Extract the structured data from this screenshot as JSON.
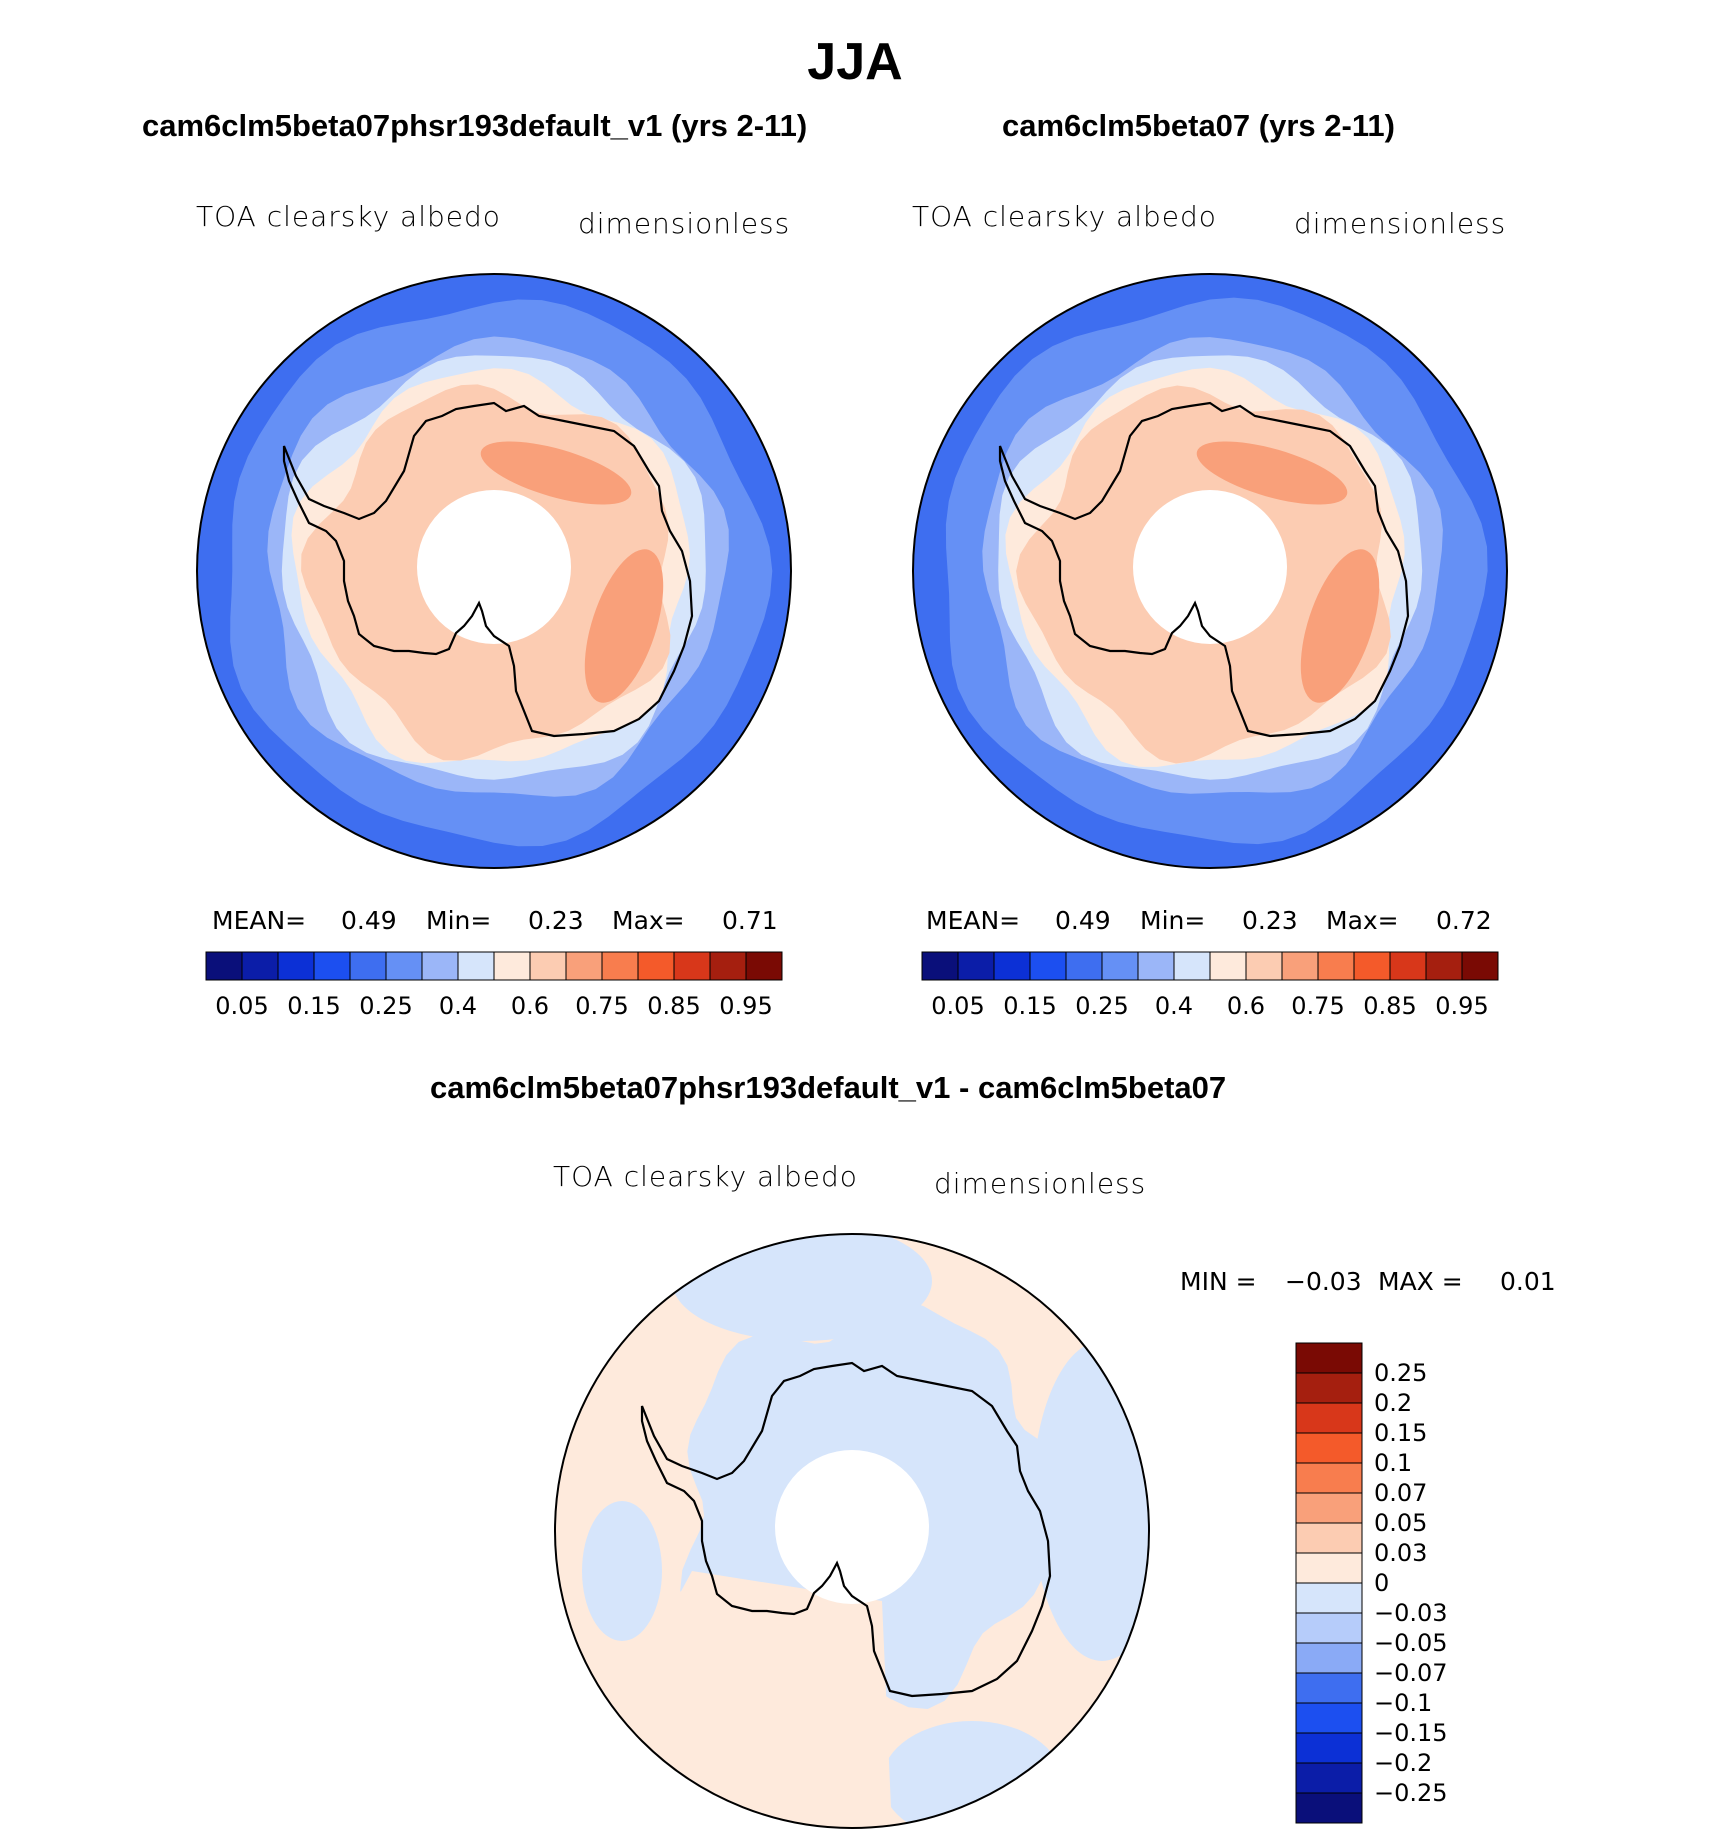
{
  "figure": {
    "title": "JJA",
    "panels": [
      {
        "case_title": "cam6clm5beta07phsr193default_v1 (yrs 2-11)",
        "variable": "TOA clearsky albedo",
        "units": "dimensionless",
        "stats": {
          "mean_label": "MEAN=",
          "mean": "0.49",
          "min_label": "Min=",
          "min": "0.23",
          "max_label": "Max=",
          "max": "0.71"
        }
      },
      {
        "case_title": "cam6clm5beta07 (yrs 2-11)",
        "variable": "TOA clearsky albedo",
        "units": "dimensionless",
        "stats": {
          "mean_label": "MEAN=",
          "mean": "0.49",
          "min_label": "Min=",
          "min": "0.23",
          "max_label": "Max=",
          "max": "0.72"
        }
      }
    ],
    "diff_panel": {
      "title": "cam6clm5beta07phsr193default_v1 - cam6clm5beta07",
      "variable": "TOA clearsky albedo",
      "units": "dimensionless",
      "min_label": "MIN =",
      "min": "−0.03",
      "max_label": "MAX =",
      "max": "0.01"
    }
  },
  "chart_data": [
    {
      "type": "heatmap",
      "projection": "south polar stereographic",
      "title": "cam6clm5beta07phsr193default_v1 (yrs 2-11)",
      "variable": "TOA clearsky albedo",
      "units": "dimensionless",
      "mean": 0.49,
      "min": 0.23,
      "max": 0.71,
      "colorbar_orientation": "horizontal",
      "colorbar_levels": [
        0.05,
        0.1,
        0.15,
        0.2,
        0.25,
        0.3,
        0.4,
        0.5,
        0.6,
        0.7,
        0.75,
        0.8,
        0.85,
        0.9,
        0.95
      ],
      "colorbar_tick_labels": [
        "0.05",
        "0.15",
        "0.25",
        "0.4",
        "0.6",
        "0.75",
        "0.85",
        "0.95"
      ],
      "colorbar_colors": [
        "#0a0f7a",
        "#0b1da8",
        "#0c30d6",
        "#1c4ff0",
        "#3e6ef0",
        "#6590f5",
        "#9bb6f8",
        "#d6e5fb",
        "#feeadc",
        "#fcccb2",
        "#f9a07a",
        "#f87d4e",
        "#f45a2a",
        "#d8371a",
        "#a51f0f",
        "#7a0a04"
      ]
    },
    {
      "type": "heatmap",
      "projection": "south polar stereographic",
      "title": "cam6clm5beta07 (yrs 2-11)",
      "variable": "TOA clearsky albedo",
      "units": "dimensionless",
      "mean": 0.49,
      "min": 0.23,
      "max": 0.72,
      "colorbar_orientation": "horizontal",
      "colorbar_levels": [
        0.05,
        0.1,
        0.15,
        0.2,
        0.25,
        0.3,
        0.4,
        0.5,
        0.6,
        0.7,
        0.75,
        0.8,
        0.85,
        0.9,
        0.95
      ],
      "colorbar_tick_labels": [
        "0.05",
        "0.15",
        "0.25",
        "0.4",
        "0.6",
        "0.75",
        "0.85",
        "0.95"
      ],
      "colorbar_colors": [
        "#0a0f7a",
        "#0b1da8",
        "#0c30d6",
        "#1c4ff0",
        "#3e6ef0",
        "#6590f5",
        "#9bb6f8",
        "#d6e5fb",
        "#feeadc",
        "#fcccb2",
        "#f9a07a",
        "#f87d4e",
        "#f45a2a",
        "#d8371a",
        "#a51f0f",
        "#7a0a04"
      ]
    },
    {
      "type": "heatmap",
      "projection": "south polar stereographic",
      "title": "cam6clm5beta07phsr193default_v1 - cam6clm5beta07",
      "variable": "TOA clearsky albedo",
      "units": "dimensionless",
      "min": -0.03,
      "max": 0.01,
      "colorbar_orientation": "vertical",
      "colorbar_tick_labels": [
        "0.25",
        "0.2",
        "0.15",
        "0.1",
        "0.07",
        "0.05",
        "0.03",
        "0",
        "−0.03",
        "−0.05",
        "−0.07",
        "−0.1",
        "−0.15",
        "−0.2",
        "−0.25"
      ],
      "colorbar_colors": [
        "#7a0a04",
        "#a51f0f",
        "#d8371a",
        "#f45a2a",
        "#f87d4e",
        "#f9a07a",
        "#fcccb2",
        "#feeadc",
        "#d6e5fb",
        "#b6ccfa",
        "#8aaaf6",
        "#3e6ef0",
        "#1c4ff0",
        "#0c30d6",
        "#0b1da8",
        "#0a0f7a"
      ]
    }
  ]
}
